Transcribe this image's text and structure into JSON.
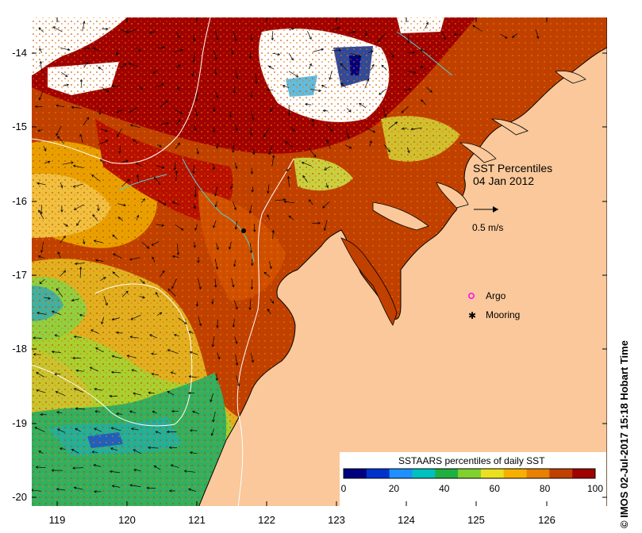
{
  "map": {
    "title": "SST Percentiles",
    "date": "04 Jan 2012",
    "current_scale_label": "0.5 m/s",
    "lon_ticks": [
      "119",
      "120",
      "121",
      "122",
      "123",
      "124",
      "125",
      "126"
    ],
    "lat_ticks": [
      "-14",
      "-15",
      "-16",
      "-17",
      "-18",
      "-19",
      "-20"
    ],
    "lon_range": [
      118.65,
      126.7
    ],
    "lat_range": [
      -20.15,
      -13.6
    ]
  },
  "legend": {
    "items": [
      {
        "label": "Argo",
        "marker": "ring",
        "color": "#ff00ff"
      },
      {
        "label": "Mooring",
        "marker": "star",
        "color": "#000000"
      }
    ]
  },
  "colorbar": {
    "title": "SSTAARS percentiles of daily SST",
    "tick_labels": [
      "0",
      "20",
      "40",
      "60",
      "80",
      "100"
    ],
    "colors": [
      "#00007f",
      "#0033cc",
      "#1e90ff",
      "#00c0c0",
      "#20b040",
      "#80d030",
      "#e8e020",
      "#f8b000",
      "#e88000",
      "#c04000",
      "#a00000"
    ]
  },
  "mooring": {
    "lon": 121.6,
    "lat": -16.4
  },
  "credit": "© IMOS 02-Jul-2017 15:18 Hobart Time"
}
